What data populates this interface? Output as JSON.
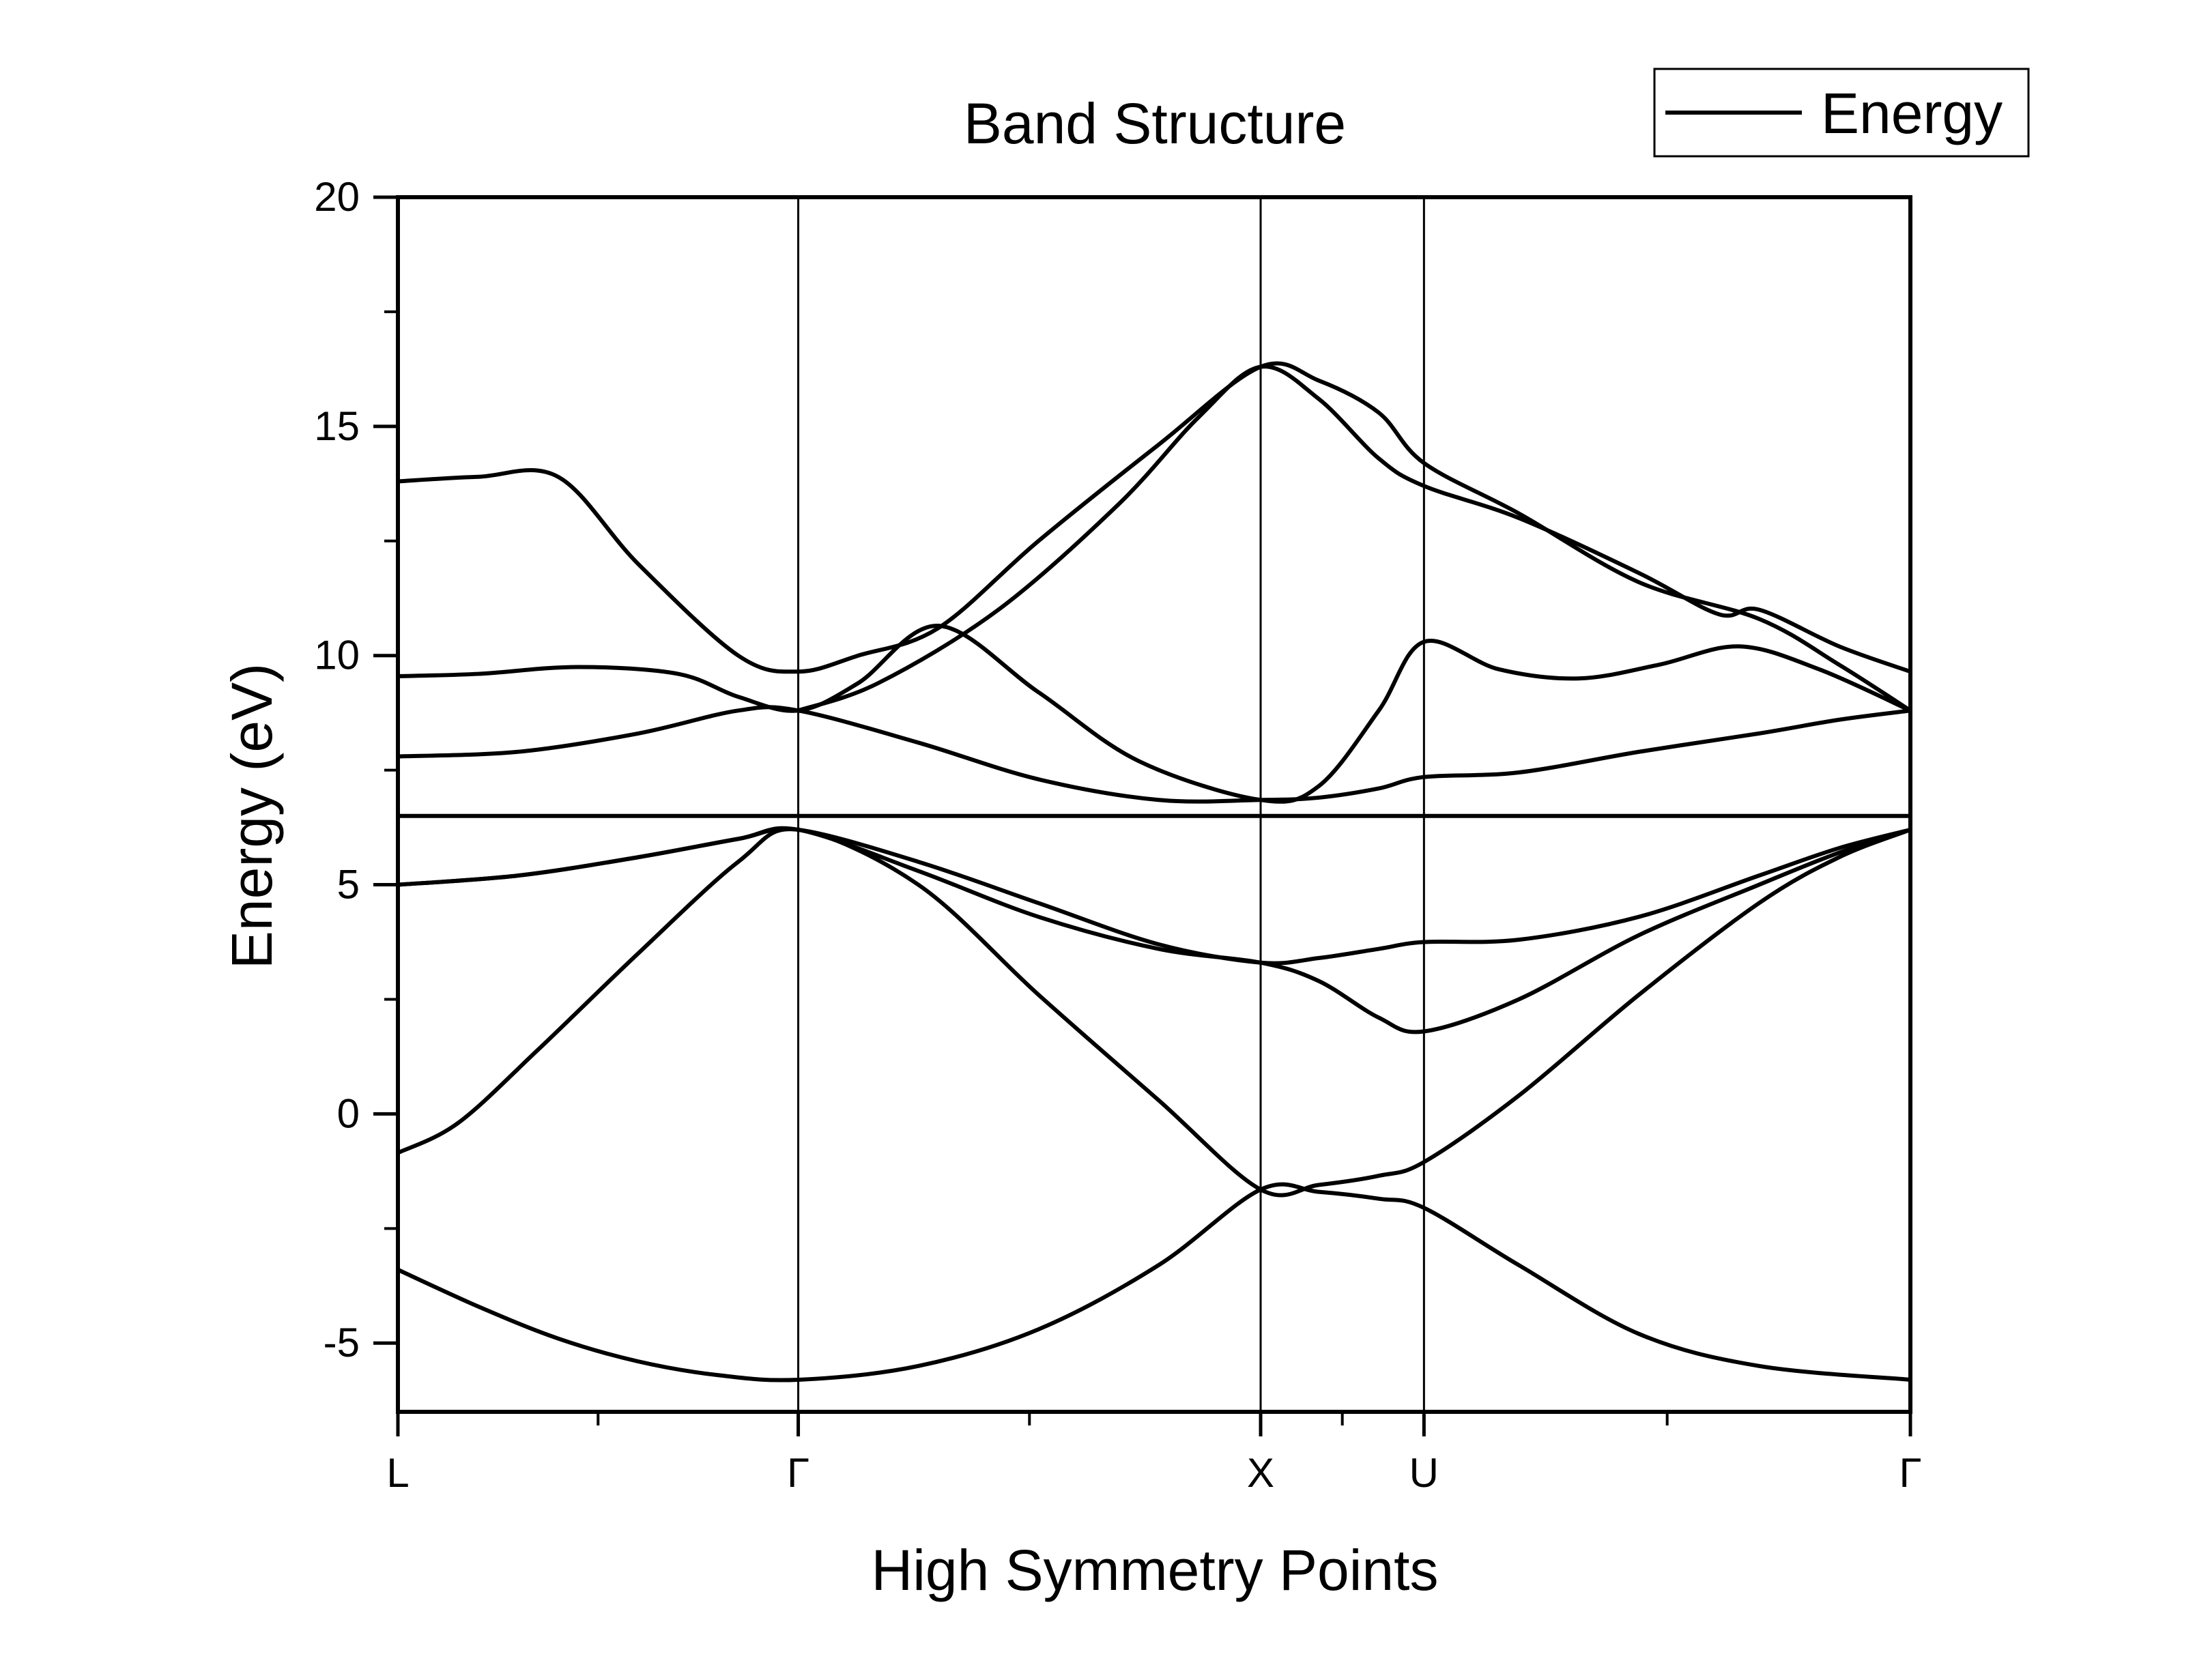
{
  "chart_data": {
    "type": "line",
    "title": "Band Structure",
    "xlabel": "High Symmetry Points",
    "ylabel": "Energy (eV)",
    "ylim": [
      -6.5,
      20
    ],
    "yticks": [
      {
        "value": 20,
        "label": "20"
      },
      {
        "value": 15,
        "label": "15"
      },
      {
        "value": 10,
        "label": "10"
      },
      {
        "value": 5,
        "label": "5"
      },
      {
        "value": 0,
        "label": "0"
      },
      {
        "value": -5,
        "label": "-5"
      }
    ],
    "xlim": [
      0,
      3.778
    ],
    "xticks": [
      {
        "value": 0,
        "label": "L"
      },
      {
        "value": 1,
        "label": "Γ"
      },
      {
        "value": 2.155,
        "label": "X"
      },
      {
        "value": 2.563,
        "label": "U"
      },
      {
        "value": 3.778,
        "label": "Γ"
      }
    ],
    "fermi_level": 6.5,
    "legend": {
      "position": "top-right",
      "entries": [
        "Energy"
      ]
    },
    "line_color": "#000000",
    "series": [
      {
        "name": "Energy",
        "x": [
          0,
          0.2,
          0.4,
          0.6,
          0.8,
          1.0,
          1.3,
          1.6,
          1.9,
          2.155,
          2.3,
          2.45,
          2.563,
          2.8,
          3.1,
          3.4,
          3.778
        ],
        "values": [
          -3.4,
          -4.2,
          -4.9,
          -5.4,
          -5.7,
          -5.8,
          -5.5,
          -4.7,
          -3.3,
          -1.65,
          -1.7,
          -1.85,
          -2.05,
          -3.3,
          -4.8,
          -5.5,
          -5.8
        ]
      },
      {
        "name": "Energy",
        "x": [
          0,
          0.15,
          0.35,
          0.6,
          0.85,
          1.0,
          1.3,
          1.6,
          1.9,
          2.155,
          2.3,
          2.45,
          2.563,
          2.8,
          3.1,
          3.4,
          3.6,
          3.778
        ],
        "values": [
          -0.85,
          -0.2,
          1.4,
          3.5,
          5.5,
          6.2,
          5.0,
          2.6,
          0.3,
          -1.65,
          -1.55,
          -1.35,
          -1.05,
          0.4,
          2.6,
          4.6,
          5.6,
          6.2
        ]
      },
      {
        "name": "Energy",
        "x": [
          0,
          0.3,
          0.6,
          0.85,
          1.0,
          1.3,
          1.6,
          1.9,
          2.155,
          2.3,
          2.45,
          2.563,
          2.8,
          3.1,
          3.4,
          3.6,
          3.778
        ],
        "values": [
          5.0,
          5.2,
          5.6,
          6.0,
          6.2,
          5.3,
          4.3,
          3.6,
          3.3,
          2.9,
          2.1,
          1.8,
          2.5,
          3.9,
          5.0,
          5.7,
          6.2
        ]
      },
      {
        "name": "Energy",
        "x": [
          0,
          0.3,
          0.6,
          0.85,
          1.0,
          1.3,
          1.6,
          1.9,
          2.155,
          2.3,
          2.45,
          2.563,
          2.8,
          3.1,
          3.4,
          3.6,
          3.778
        ],
        "values": [
          5.0,
          5.2,
          5.6,
          6.0,
          6.2,
          5.5,
          4.6,
          3.7,
          3.3,
          3.4,
          3.6,
          3.75,
          3.8,
          4.3,
          5.2,
          5.8,
          6.2
        ]
      },
      {
        "name": "Energy",
        "x": [
          0,
          0.3,
          0.6,
          0.85,
          1.0,
          1.3,
          1.6,
          1.9,
          2.155,
          2.3,
          2.45,
          2.563,
          2.8,
          3.1,
          3.4,
          3.6,
          3.778
        ],
        "values": [
          7.8,
          7.9,
          8.3,
          8.8,
          8.8,
          8.1,
          7.3,
          6.85,
          6.85,
          6.9,
          7.1,
          7.35,
          7.45,
          7.9,
          8.3,
          8.6,
          8.8
        ]
      },
      {
        "name": "Energy",
        "x": [
          0,
          0.2,
          0.45,
          0.7,
          0.85,
          1.0,
          1.15,
          1.35,
          1.6,
          1.85,
          2.155,
          2.3,
          2.45,
          2.563,
          2.75,
          2.95,
          3.15,
          3.35,
          3.55,
          3.778
        ],
        "values": [
          9.55,
          9.6,
          9.75,
          9.6,
          9.1,
          8.8,
          9.4,
          10.65,
          9.2,
          7.7,
          6.85,
          7.15,
          8.8,
          10.3,
          9.7,
          9.5,
          9.8,
          10.2,
          9.7,
          8.8
        ]
      },
      {
        "name": "Energy",
        "x": [
          0,
          0.2,
          0.4,
          0.6,
          0.85,
          1.0,
          1.15,
          1.35,
          1.6,
          1.9,
          2.155,
          2.3,
          2.45,
          2.563,
          2.8,
          3.1,
          3.4,
          3.6,
          3.778
        ],
        "values": [
          13.8,
          13.9,
          13.9,
          12.0,
          10.0,
          9.65,
          10.0,
          10.6,
          12.5,
          14.6,
          16.3,
          16.0,
          15.3,
          14.2,
          13.1,
          11.6,
          10.8,
          9.8,
          8.8
        ]
      },
      {
        "name": "Energy",
        "x": [
          1.0,
          1.2,
          1.5,
          1.8,
          2.0,
          2.155,
          2.3,
          2.45,
          2.563,
          2.8,
          3.1,
          3.3,
          3.4,
          3.6,
          3.778
        ],
        "values": [
          8.8,
          9.4,
          11.0,
          13.3,
          15.2,
          16.3,
          15.6,
          14.3,
          13.7,
          13.0,
          11.8,
          10.9,
          11.0,
          10.2,
          9.65
        ]
      }
    ]
  }
}
